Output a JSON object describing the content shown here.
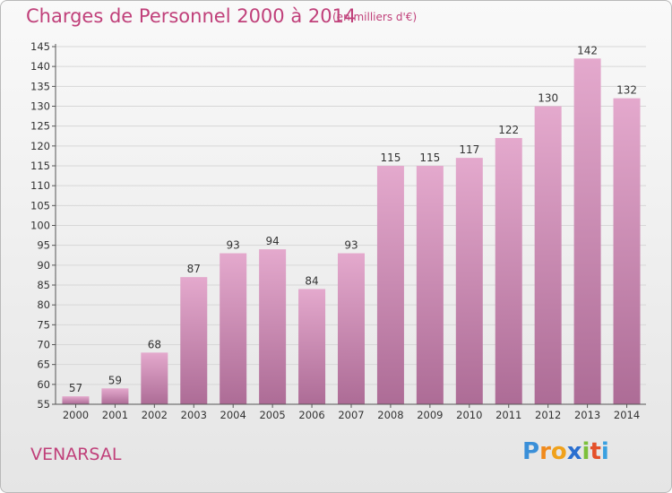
{
  "header": {
    "title": "Charges de Personnel 2000 à 2014",
    "subtitle": "(en milliers d'€)"
  },
  "footer": {
    "town": "VENARSAL",
    "logo": "Proxiti",
    "logo_letters": [
      {
        "ch": "P",
        "color": "#3a8fd8"
      },
      {
        "ch": "r",
        "color": "#f08a1c"
      },
      {
        "ch": "o",
        "color": "#f0a21c"
      },
      {
        "ch": "x",
        "color": "#2a6fd0"
      },
      {
        "ch": "i",
        "color": "#7cc03c"
      },
      {
        "ch": "t",
        "color": "#e4502a"
      },
      {
        "ch": "i",
        "color": "#3aa0e0"
      }
    ]
  },
  "colors": {
    "accent": "#c0407a",
    "bar_top": "#e4a9cd",
    "bar_bottom": "#ad6c96",
    "grid": "#d7d7d7",
    "axis": "#555555"
  },
  "chart_data": {
    "type": "bar",
    "categories": [
      "2000",
      "2001",
      "2002",
      "2003",
      "2004",
      "2005",
      "2006",
      "2007",
      "2008",
      "2009",
      "2010",
      "2011",
      "2012",
      "2013",
      "2014"
    ],
    "values": [
      57,
      59,
      68,
      87,
      93,
      94,
      84,
      93,
      115,
      115,
      117,
      122,
      130,
      142,
      132
    ],
    "ylim": [
      55,
      145
    ],
    "ytick_step": 5,
    "grid": true,
    "title": "Charges de Personnel 2000 à 2014",
    "xlabel": "",
    "ylabel": ""
  }
}
